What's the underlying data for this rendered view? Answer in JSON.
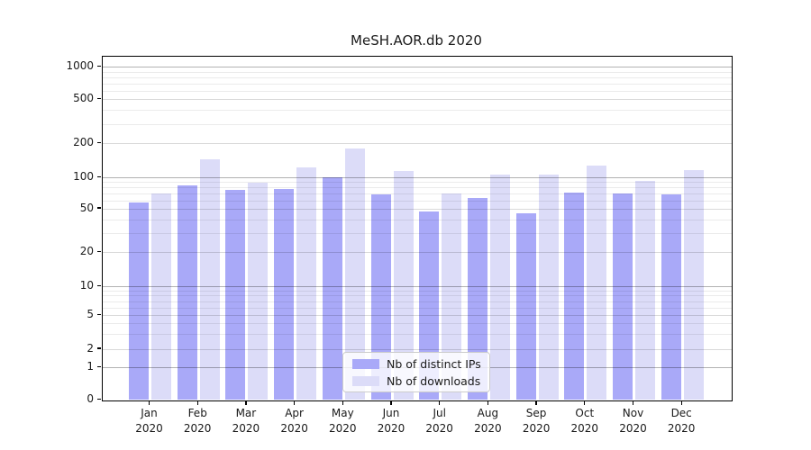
{
  "figure": {
    "title": "MeSH.AOR.db 2020",
    "background": "#ffffff"
  },
  "chart_data": {
    "type": "bar",
    "title": "MeSH.AOR.db 2020",
    "categories": [
      "Jan",
      "Feb",
      "Mar",
      "Apr",
      "May",
      "Jun",
      "Jul",
      "Aug",
      "Sep",
      "Oct",
      "Nov",
      "Dec"
    ],
    "category_year": "2020",
    "series": [
      {
        "name": "Nb of distinct IPs",
        "color": "#a9a9f8",
        "values": [
          57,
          83,
          75,
          77,
          100,
          68,
          47,
          63,
          45,
          71,
          70,
          68
        ]
      },
      {
        "name": "Nb of downloads",
        "color": "#dcdcf8",
        "values": [
          70,
          145,
          89,
          123,
          180,
          114,
          70,
          105,
          106,
          127,
          92,
          117
        ]
      }
    ],
    "yscale": "symlog",
    "yticks": [
      0,
      1,
      2,
      5,
      10,
      20,
      50,
      100,
      200,
      500,
      1000
    ],
    "ylim": [
      0,
      1200
    ],
    "grid": true,
    "legend": {
      "entries": [
        "Nb of distinct IPs",
        "Nb of downloads"
      ],
      "position": "lower-center"
    }
  }
}
